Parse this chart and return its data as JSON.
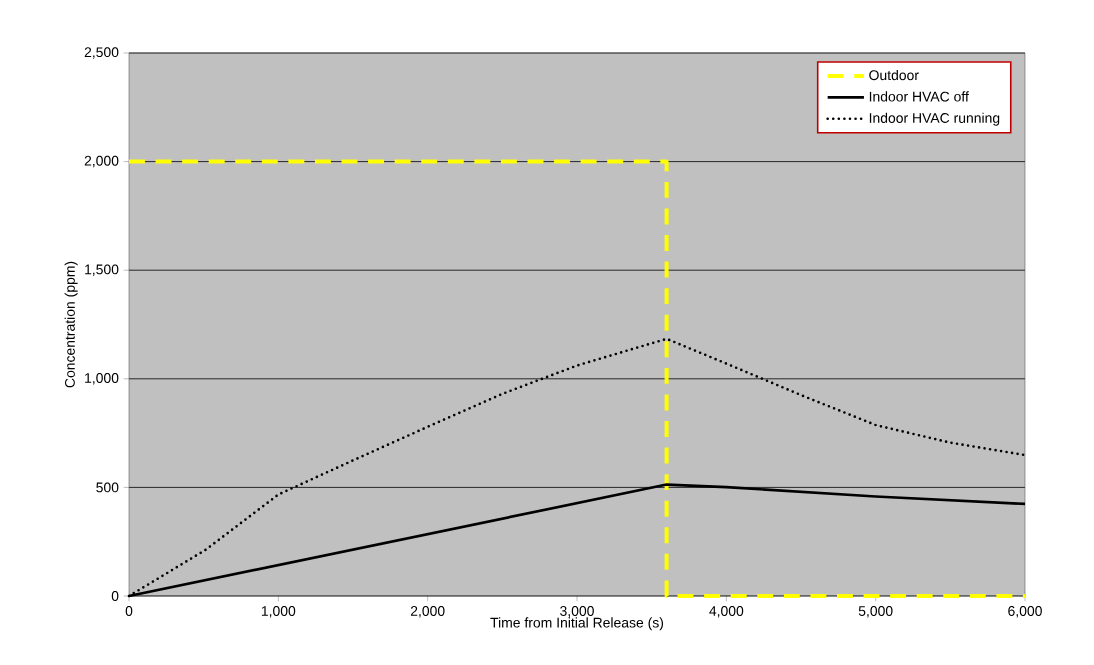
{
  "chart_data": {
    "type": "line",
    "xlabel": "Time from Initial Release (s)",
    "ylabel": "Concentration (ppm)",
    "xlim": [
      0,
      6000
    ],
    "xticks": [
      {
        "value": 0,
        "label": "0"
      },
      {
        "value": 1000,
        "label": "1,000"
      },
      {
        "value": 2000,
        "label": "2,000"
      },
      {
        "value": 3000,
        "label": "3,000"
      },
      {
        "value": 4000,
        "label": "4,000"
      },
      {
        "value": 5000,
        "label": "5,000"
      },
      {
        "value": 6000,
        "label": "6,000"
      }
    ],
    "ylim": [
      0,
      2500
    ],
    "yticks": [
      {
        "value": 0,
        "label": "0"
      },
      {
        "value": 500,
        "label": "500"
      },
      {
        "value": 1000,
        "label": "1,000"
      },
      {
        "value": 1500,
        "label": "1,500"
      },
      {
        "value": 2000,
        "label": "2,000"
      },
      {
        "value": 2500,
        "label": "2,500"
      }
    ],
    "grid": "y",
    "legend": "top right",
    "marker": "none",
    "series": [
      {
        "name": "Outdoor",
        "color": "#ffff00",
        "line_style": "dashed",
        "x": [
          0,
          3600,
          3600,
          6000
        ],
        "values": [
          2000,
          2000,
          0,
          0
        ]
      },
      {
        "name": "Indoor HVAC off",
        "color": "#000000",
        "line_style": "solid",
        "x": [
          0,
          3600,
          4000,
          5000,
          6000
        ],
        "values": [
          0,
          513,
          501,
          458,
          424
        ]
      },
      {
        "name": "Indoor HVAC running",
        "color": "#000000",
        "line_style": "dotted",
        "x": [
          0,
          514,
          1000,
          1496,
          2000,
          2502,
          3000,
          3600,
          4000,
          4500,
          5000,
          5500,
          6000
        ],
        "values": [
          0,
          213,
          467,
          623,
          779,
          931,
          1061,
          1184,
          1070,
          925,
          787,
          706,
          649
        ]
      }
    ]
  }
}
